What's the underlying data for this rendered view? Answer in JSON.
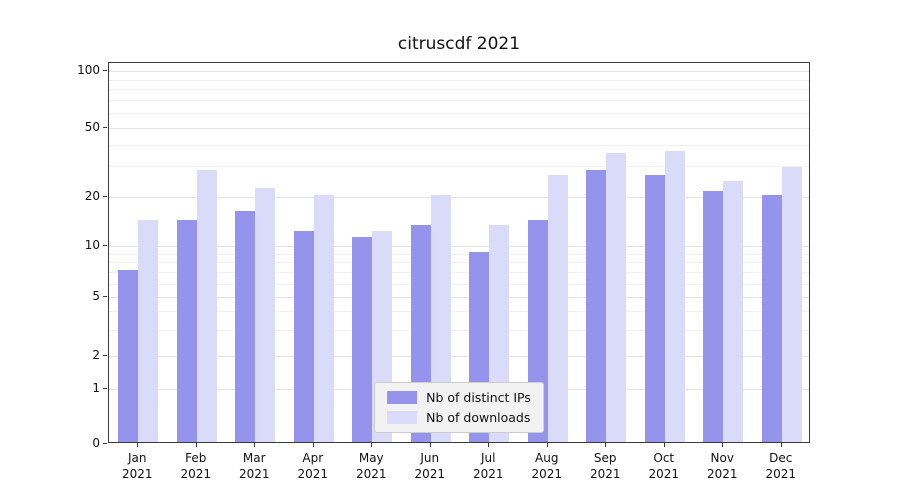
{
  "chart_data": {
    "type": "bar",
    "title": "citruscdf 2021",
    "categories": [
      "Jan",
      "Feb",
      "Mar",
      "Apr",
      "May",
      "Jun",
      "Jul",
      "Aug",
      "Sep",
      "Oct",
      "Nov",
      "Dec"
    ],
    "year_label": "2021",
    "series": [
      {
        "name": "Nb of distinct IPs",
        "color": "#9494ed",
        "values": [
          7,
          14,
          16,
          12,
          11,
          13,
          9,
          14,
          28,
          26,
          21,
          20
        ]
      },
      {
        "name": "Nb of downloads",
        "color": "#dadaf9",
        "values": [
          14,
          28,
          22,
          20,
          12,
          20,
          13,
          26,
          35,
          36,
          24,
          29
        ]
      }
    ],
    "y_ticks": [
      0,
      1,
      2,
      5,
      10,
      20,
      50,
      100
    ],
    "y_minor_ticks": [
      3,
      4,
      6,
      7,
      8,
      9,
      30,
      40,
      60,
      70,
      80,
      90
    ],
    "y_scale": "symlog",
    "ylim": [
      0,
      110
    ],
    "grid": "horizontal",
    "legend_position": "lower center"
  }
}
